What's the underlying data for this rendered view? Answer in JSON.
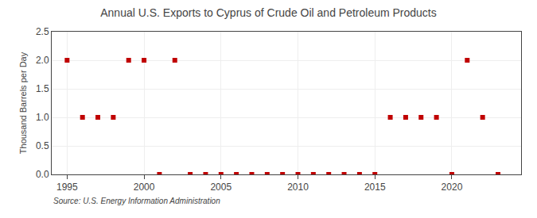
{
  "chart_data": {
    "type": "scatter",
    "title": "Annual U.S. Exports to Cyprus of Crude Oil and Petroleum Products",
    "ylabel": "Thousand Barrels per Day",
    "annotations": [
      "Source: U.S. Energy Information Administration"
    ],
    "x": [
      1995,
      1996,
      1997,
      1998,
      1999,
      2000,
      2001,
      2002,
      2003,
      2004,
      2005,
      2006,
      2007,
      2008,
      2009,
      2010,
      2011,
      2012,
      2013,
      2014,
      2015,
      2016,
      2017,
      2018,
      2019,
      2020,
      2021,
      2022,
      2023
    ],
    "values": [
      2.0,
      1.0,
      1.0,
      1.0,
      2.0,
      2.0,
      0.0,
      2.0,
      0.0,
      0.0,
      0.0,
      0.0,
      0.0,
      0.0,
      0.0,
      0.0,
      0.0,
      0.0,
      0.0,
      0.0,
      0.0,
      1.0,
      1.0,
      1.0,
      1.0,
      0.0,
      2.0,
      1.0,
      0.0
    ],
    "color": "#c00000",
    "marker": "square",
    "xlim": [
      1994.0,
      2024.5
    ],
    "ylim": [
      0.0,
      2.5
    ],
    "xticks": [
      1995,
      2000,
      2005,
      2010,
      2015,
      2020
    ],
    "yticks": [
      {
        "value": 0.0,
        "label": "0.0"
      },
      0.5,
      {
        "value": 1.0,
        "label": "1.0"
      },
      1.5,
      {
        "value": 2.0,
        "label": "2.0"
      },
      2.5
    ],
    "grid": true
  }
}
